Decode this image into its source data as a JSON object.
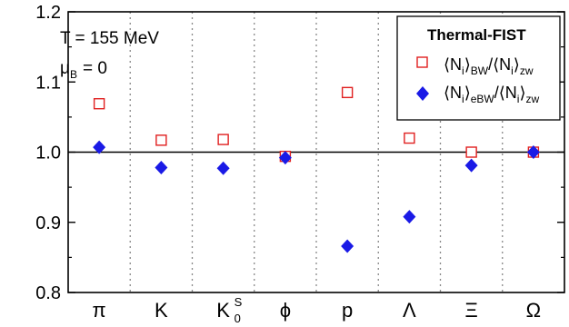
{
  "chart_data": {
    "type": "scatter",
    "categories": [
      "π",
      "K",
      "K",
      "ϕ",
      "p",
      "Λ",
      "Ξ",
      "Ω"
    ],
    "category_label_sub": [
      "",
      "",
      "0",
      "",
      "",
      "",
      "",
      ""
    ],
    "category_label_sup": [
      "",
      "",
      "S",
      "",
      "",
      "",
      "",
      ""
    ],
    "series": [
      {
        "name": "⟨N_i⟩_BW/⟨N_i⟩_zw",
        "marker": "open-square",
        "color": "#e02020",
        "values": [
          1.069,
          1.017,
          1.018,
          0.994,
          1.085,
          1.02,
          1.0,
          1.0
        ]
      },
      {
        "name": "⟨N_i⟩_eBW/⟨N_i⟩_zw",
        "marker": "filled-diamond",
        "color": "#1a1ae6",
        "values": [
          1.007,
          0.978,
          0.977,
          0.992,
          0.866,
          0.908,
          0.981,
          1.0
        ]
      }
    ],
    "ylim": [
      0.8,
      1.2
    ],
    "yticks": [
      "0.8",
      "0.9",
      "1.0",
      "1.1",
      "1.2"
    ],
    "reference_line": 1.0,
    "category_separators": "dotted",
    "legend_position": "top-right",
    "legend_title": "Thermal-FIST",
    "annotations": [
      "T  = 155 MeV",
      "μ",
      "B",
      "= 0"
    ]
  }
}
